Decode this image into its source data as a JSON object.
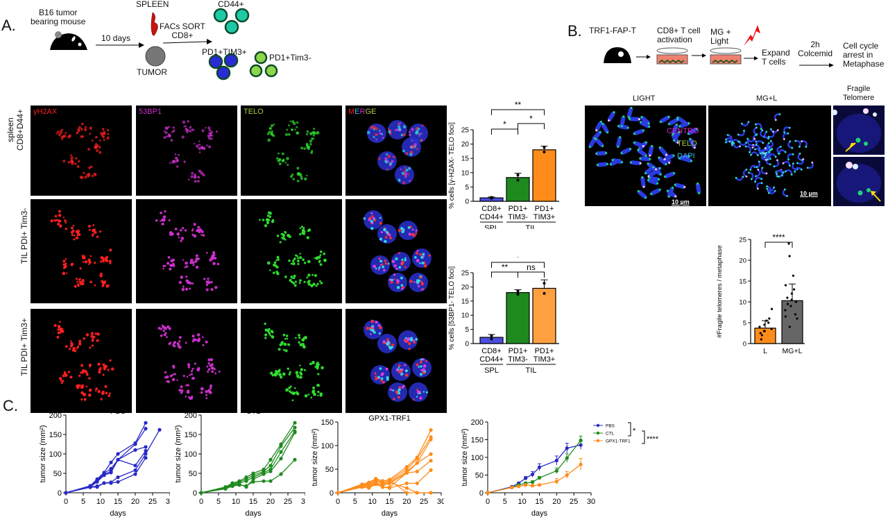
{
  "panelA": {
    "letter": "A.",
    "schematic": {
      "mouse_label": "B16 tumor bearing mouse",
      "mouse_label_line1": "B16 tumor",
      "mouse_label_line2": "bearing mouse",
      "arrow1": "10 days",
      "spleen": "SPLEEN",
      "tumor": "TUMOR",
      "sort_line1": "FACs SORT",
      "sort_line2": "CD8+",
      "pop1": "CD44+",
      "pop2": "PD1+TIM3+",
      "pop3": "PD1+Tim3-"
    },
    "channels": [
      "γH2AX",
      "53BP1",
      "TELO",
      "MERGE"
    ],
    "rows": [
      "spleen CD8+D44+",
      "TIL PDI+ Tim3-",
      "TIL PDI+ Tim3+"
    ],
    "row1_line1": "spleen",
    "row1_line2": "CD8+D44+",
    "scale": "10 µm"
  },
  "panelB": {
    "letter": "B.",
    "schematic": {
      "step1": "TRF1-FAP-T",
      "step2_line1": "CD8+ T cell",
      "step2_line2": "activation",
      "step3_line1": "MG +",
      "step3_line2": "Light",
      "step4_line1": "Expand",
      "step4_line2": "T cells",
      "step5_line1": "2h",
      "step5_line2": "Colcemid",
      "step6_line1": "Cell cycle",
      "step6_line2": "arrest in",
      "step6_line3": "Metaphase"
    },
    "images": {
      "light_title": "LIGHT",
      "mgl_title": "MG+L",
      "fragile_line1": "Fragile",
      "fragile_line2": "Telomere",
      "legend": [
        "CENTRO",
        "TELO",
        "DAPI"
      ],
      "scale": "10 µm"
    }
  },
  "panelC": {
    "letter": "C."
  },
  "chart_data": [
    {
      "id": "A-gH2AX",
      "type": "bar",
      "categories": [
        "CD8+ CD44+",
        "PD1+ TIM3-",
        "PD1+ TIM3+"
      ],
      "groups": [
        {
          "label": "SPL",
          "members": [
            "CD8+ CD44+"
          ]
        },
        {
          "label": "TIL",
          "members": [
            "PD1+ TIM3-",
            "PD1+ TIM3+"
          ]
        }
      ],
      "values": [
        1.2,
        8.3,
        18.0
      ],
      "errors": [
        0.3,
        1.5,
        1.3
      ],
      "colors": [
        "#4b4fe0",
        "#1e8a1e",
        "#ff8c1a"
      ],
      "ylabel": "% cells [γ-H2AX- TELO foci]",
      "ylim": [
        0,
        25
      ],
      "yticks": [
        0,
        5,
        10,
        15,
        20,
        25
      ],
      "significance": [
        {
          "pair": [
            0,
            2
          ],
          "label": "**"
        },
        {
          "pair": [
            0,
            1
          ],
          "label": "*"
        },
        {
          "pair": [
            1,
            2
          ],
          "label": "*"
        }
      ]
    },
    {
      "id": "A-53BP1",
      "type": "bar",
      "categories": [
        "CD8+ CD44+",
        "PD1+ TIM3-",
        "PD1+ TIM3+"
      ],
      "groups": [
        {
          "label": "SPL",
          "members": [
            "CD8+ CD44+"
          ]
        },
        {
          "label": "TIL",
          "members": [
            "PD1+ TIM3-",
            "PD1+ TIM3+"
          ]
        }
      ],
      "values": [
        2.2,
        18.0,
        19.5
      ],
      "errors": [
        1.0,
        1.0,
        3.0
      ],
      "colors": [
        "#4b4fe0",
        "#1e8a1e",
        "#ffa040"
      ],
      "ylabel": "% cells [53BP1- TELO foci]",
      "ylim": [
        0,
        25
      ],
      "yticks": [
        0,
        5,
        10,
        15,
        20,
        25
      ],
      "significance": [
        {
          "pair": [
            0,
            2
          ],
          "label": "*"
        },
        {
          "pair": [
            0,
            1
          ],
          "label": "**"
        },
        {
          "pair": [
            1,
            2
          ],
          "label": "ns"
        }
      ]
    },
    {
      "id": "B-fragile",
      "type": "bar",
      "categories": [
        "L",
        "MG+L"
      ],
      "values": [
        3.7,
        10.3
      ],
      "errors": [
        1.8,
        4.0
      ],
      "colors": [
        "#ff8c1a",
        "#666666"
      ],
      "ylabel": "#Fragile telomeres / metaphase",
      "ylim": [
        0,
        25
      ],
      "yticks": [
        0,
        5,
        10,
        15,
        20,
        25
      ],
      "points": [
        [
          1,
          2,
          2.5,
          3,
          3,
          3.5,
          4,
          4.5,
          5,
          5.5,
          6,
          8.3
        ],
        [
          4,
          6,
          6.5,
          7,
          8,
          9,
          9.5,
          10,
          10.5,
          11,
          12,
          13,
          14,
          16.3,
          21,
          24
        ]
      ],
      "significance": [
        {
          "pair": [
            0,
            1
          ],
          "label": "****"
        }
      ]
    },
    {
      "id": "C-PBS",
      "type": "line",
      "title": "PBS",
      "xlabel": "days",
      "ylabel": "tumor size (mm²)",
      "xlim": [
        0,
        30
      ],
      "ylim": [
        0,
        200
      ],
      "xticks": [
        0,
        5,
        10,
        15,
        20,
        25,
        30
      ],
      "yticks": [
        0,
        50,
        100,
        150,
        200
      ],
      "color": "#2828c8",
      "series": [
        {
          "x": [
            0,
            7,
            9,
            11,
            13,
            15,
            20,
            23
          ],
          "y": [
            0,
            18,
            35,
            52,
            78,
            100,
            128,
            180
          ]
        },
        {
          "x": [
            0,
            7,
            9,
            11,
            13,
            15,
            20,
            23
          ],
          "y": [
            0,
            17,
            32,
            50,
            62,
            85,
            125,
            165
          ]
        },
        {
          "x": [
            0,
            7,
            9,
            11,
            13,
            15,
            20,
            23
          ],
          "y": [
            0,
            16,
            30,
            47,
            55,
            85,
            110,
            118
          ]
        },
        {
          "x": [
            0,
            7,
            9,
            11,
            13,
            15,
            20,
            23
          ],
          "y": [
            0,
            15,
            28,
            45,
            52,
            85,
            70,
            108
          ]
        },
        {
          "x": [
            0,
            7,
            9,
            11,
            13,
            15,
            20,
            23,
            27
          ],
          "y": [
            0,
            15,
            17,
            25,
            27,
            40,
            58,
            100,
            162
          ]
        },
        {
          "x": [
            0,
            7,
            9,
            11,
            13,
            15,
            20,
            23
          ],
          "y": [
            0,
            14,
            15,
            25,
            25,
            28,
            48,
            90
          ]
        }
      ]
    },
    {
      "id": "C-CTL",
      "type": "line",
      "title": "CTL",
      "xlabel": "days",
      "ylabel": "tumor size (mm²)",
      "xlim": [
        0,
        30
      ],
      "ylim": [
        0,
        200
      ],
      "xticks": [
        0,
        5,
        10,
        15,
        20,
        25,
        30
      ],
      "yticks": [
        0,
        50,
        100,
        150,
        200
      ],
      "color": "#1e8a1e",
      "series": [
        {
          "x": [
            0,
            7,
            9,
            11,
            13,
            15,
            18,
            20,
            23,
            27
          ],
          "y": [
            0,
            15,
            25,
            30,
            40,
            50,
            60,
            85,
            125,
            180
          ]
        },
        {
          "x": [
            0,
            7,
            9,
            11,
            13,
            15,
            18,
            20,
            23,
            27
          ],
          "y": [
            0,
            13,
            22,
            28,
            35,
            45,
            55,
            70,
            120,
            168
          ]
        },
        {
          "x": [
            0,
            7,
            9,
            11,
            13,
            15,
            18,
            20,
            23,
            27
          ],
          "y": [
            0,
            12,
            20,
            25,
            30,
            40,
            52,
            60,
            105,
            158
          ]
        },
        {
          "x": [
            0,
            7,
            9,
            11,
            13,
            15,
            18,
            20,
            23,
            27
          ],
          "y": [
            0,
            11,
            18,
            22,
            15,
            35,
            48,
            55,
            88,
            155
          ]
        },
        {
          "x": [
            0,
            7,
            9,
            11,
            13,
            15,
            18,
            20,
            23,
            27
          ],
          "y": [
            0,
            10,
            17,
            20,
            18,
            28,
            30,
            30,
            48,
            85
          ]
        }
      ]
    },
    {
      "id": "C-GPX1-TRF1",
      "type": "line",
      "title": "GPX1-TRF1",
      "xlabel": "days",
      "ylabel": "tumor size (mm²)",
      "xlim": [
        0,
        30
      ],
      "ylim": [
        0,
        150
      ],
      "xticks": [
        0,
        5,
        10,
        15,
        20,
        25,
        30
      ],
      "yticks": [
        0,
        50,
        100,
        150
      ],
      "color": "#ff8c1a",
      "series": [
        {
          "x": [
            0,
            7,
            9,
            11,
            13,
            15,
            20,
            23,
            27
          ],
          "y": [
            0,
            18,
            22,
            30,
            25,
            28,
            55,
            75,
            133
          ]
        },
        {
          "x": [
            0,
            7,
            9,
            11,
            13,
            15,
            20,
            23,
            27
          ],
          "y": [
            0,
            16,
            20,
            28,
            22,
            25,
            50,
            72,
            118
          ]
        },
        {
          "x": [
            0,
            7,
            9,
            11,
            13,
            15,
            20,
            23,
            27
          ],
          "y": [
            0,
            15,
            20,
            25,
            20,
            22,
            45,
            63,
            113
          ]
        },
        {
          "x": [
            0,
            7,
            9,
            11,
            13,
            15,
            20,
            23,
            27
          ],
          "y": [
            0,
            14,
            18,
            22,
            15,
            20,
            42,
            63,
            82
          ]
        },
        {
          "x": [
            0,
            7,
            9,
            11,
            13,
            15,
            20,
            23,
            27
          ],
          "y": [
            0,
            13,
            15,
            20,
            12,
            12,
            42,
            45,
            68
          ]
        },
        {
          "x": [
            0,
            7,
            9,
            11,
            13,
            15,
            20,
            23,
            27
          ],
          "y": [
            0,
            12,
            10,
            18,
            12,
            10,
            20,
            20,
            48
          ]
        },
        {
          "x": [
            0,
            7,
            9,
            11,
            13,
            15,
            20,
            23,
            27
          ],
          "y": [
            0,
            12,
            12,
            20,
            18,
            22,
            10,
            0,
            0
          ]
        },
        {
          "x": [
            0,
            7,
            9,
            11,
            13,
            15,
            20,
            23,
            27
          ],
          "y": [
            0,
            14,
            18,
            22,
            25,
            27,
            0,
            0,
            0
          ]
        }
      ]
    },
    {
      "id": "C-mean",
      "type": "line",
      "xlabel": "days",
      "ylabel": "tumor size (mm²)",
      "xlim": [
        0,
        30
      ],
      "ylim": [
        0,
        200
      ],
      "xticks": [
        0,
        5,
        10,
        15,
        20,
        25,
        30
      ],
      "yticks": [
        0,
        50,
        100,
        150,
        200
      ],
      "legend": [
        "PBS",
        "CTL",
        "GPX1-TRF1"
      ],
      "legend_position": "right",
      "series": [
        {
          "name": "PBS",
          "color": "#2828c8",
          "x": [
            0,
            7,
            9,
            11,
            13,
            15,
            20,
            23,
            27
          ],
          "y": [
            0,
            17,
            27,
            41,
            52,
            72,
            91,
            126,
            135
          ],
          "err": [
            0,
            2,
            3,
            5,
            8,
            10,
            13,
            14,
            12
          ]
        },
        {
          "name": "CTL",
          "color": "#1e8a1e",
          "x": [
            0,
            7,
            9,
            11,
            13,
            15,
            20,
            23,
            27
          ],
          "y": [
            0,
            15,
            22,
            27,
            30,
            42,
            62,
            98,
            148
          ],
          "err": [
            0,
            2,
            3,
            3,
            4,
            4,
            8,
            12,
            12
          ]
        },
        {
          "name": "GPX1-TRF1",
          "color": "#ff8c1a",
          "x": [
            0,
            7,
            9,
            11,
            13,
            15,
            20,
            23,
            27
          ],
          "y": [
            0,
            15,
            18,
            22,
            20,
            22,
            32,
            50,
            80
          ],
          "err": [
            0,
            2,
            2,
            3,
            3,
            3,
            8,
            10,
            17
          ]
        }
      ],
      "significance": [
        {
          "pair": [
            "PBS",
            "CTL"
          ],
          "label": "*"
        },
        {
          "pair": [
            "CTL",
            "GPX1-TRF1"
          ],
          "label": "****"
        }
      ]
    }
  ]
}
